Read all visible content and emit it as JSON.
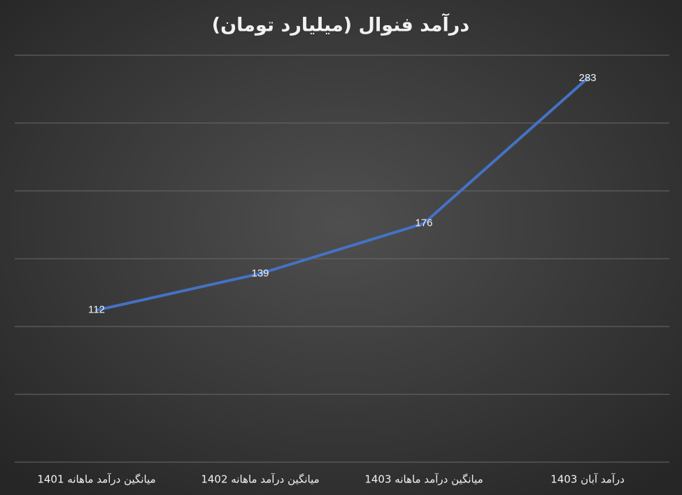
{
  "chart_data": {
    "type": "line",
    "title": "درآمد فنوال (میلیارد تومان)",
    "categories": [
      "میانگین درآمد ماهانه 1401",
      "میانگین درآمد ماهانه 1402",
      "میانگین درآمد ماهانه 1403",
      "درآمد آبان 1403"
    ],
    "values": [
      112,
      139,
      176,
      283
    ],
    "color": "#4472c4",
    "ylim": [
      0,
      300
    ],
    "yticks": [
      0,
      50,
      100,
      150,
      200,
      250,
      300
    ],
    "grid": true
  }
}
